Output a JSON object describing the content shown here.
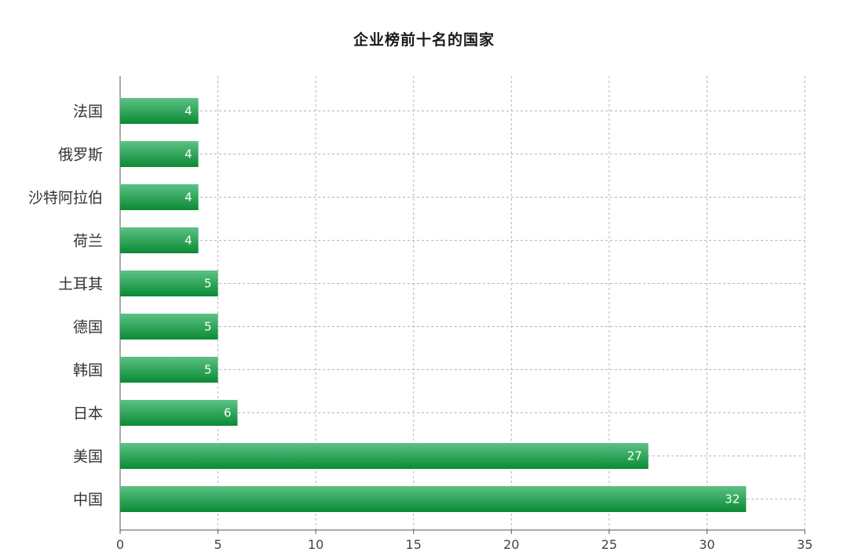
{
  "chart_data": {
    "type": "bar",
    "orientation": "horizontal",
    "title": "企业榜前十名的国家",
    "categories": [
      "法国",
      "俄罗斯",
      "沙特阿拉伯",
      "荷兰",
      "土耳其",
      "德国",
      "韩国",
      "日本",
      "美国",
      "中国"
    ],
    "values": [
      4,
      4,
      4,
      4,
      5,
      5,
      5,
      6,
      27,
      32
    ],
    "data_labels": [
      "4",
      "4",
      "4",
      "4",
      "5",
      "5",
      "5",
      "6",
      "27",
      "32"
    ],
    "xlim": [
      0,
      35
    ],
    "x_ticks": [
      "0",
      "5",
      "10",
      "15",
      "20",
      "25",
      "30",
      "35"
    ],
    "grid": true,
    "bar_color_light": "#5cc285",
    "bar_color_dark": "#0a8a34",
    "grid_color": "#b5b5b5",
    "axis_color": "#555555"
  }
}
